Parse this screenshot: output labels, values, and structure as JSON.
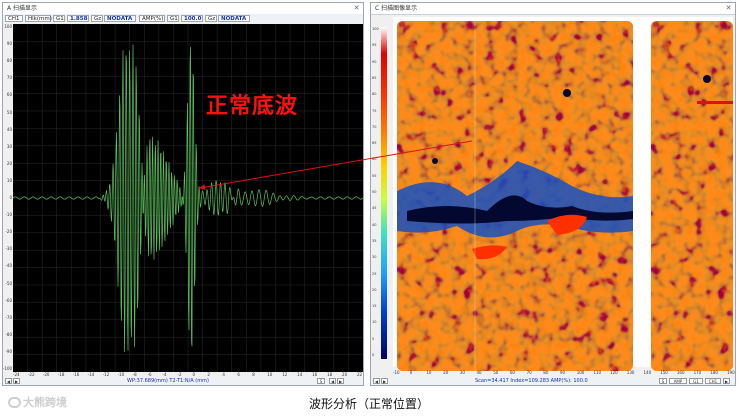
{
  "ascan": {
    "title": "A 扫描显示",
    "toolbar": {
      "ch": "CH1",
      "unit": "Hlk(mm)",
      "g1": "G1",
      "g1_val": "1.858",
      "gz1": "Gz",
      "gz1_val": "NODATA",
      "amp": "AMP(%)",
      "g2": "G1",
      "g2_val": "100.0",
      "gz2": "Gz",
      "gz2_val": "NODATA"
    },
    "ylabels": [
      "100",
      "90",
      "80",
      "70",
      "60",
      "50",
      "40",
      "30",
      "20",
      "10",
      "0",
      "-10",
      "-20",
      "-30",
      "-40",
      "-50",
      "-60",
      "-70",
      "-80",
      "-90",
      "-100"
    ],
    "xlabels": [
      "-24",
      "-22",
      "-20",
      "-18",
      "-16",
      "-14",
      "-12",
      "-10",
      "-8",
      "-6",
      "-4",
      "-2",
      "0",
      "2",
      "4",
      "6",
      "8",
      "10",
      "12",
      "14",
      "16",
      "18",
      "20",
      "22"
    ],
    "status": "WP:37.689(mm)  T2-T1:N/A (mm)",
    "status_s": "S",
    "wave_color": "#5cc05c"
  },
  "cscan": {
    "title": "C 扫描图像显示",
    "colorbar_labels": [
      "100",
      "95",
      "90",
      "85",
      "80",
      "75",
      "70",
      "65",
      "60",
      "55",
      "50",
      "45",
      "40",
      "35",
      "30",
      "25",
      "20",
      "15",
      "10",
      "5",
      "0"
    ],
    "xlabels": [
      "-10",
      "0",
      "10",
      "20",
      "30",
      "40",
      "50",
      "60",
      "70",
      "80",
      "90",
      "100",
      "110",
      "120",
      "130",
      "140",
      "150",
      "160",
      "170",
      "180",
      "190"
    ],
    "status": "Scan=34.417  Index=109.283  AMP(%): 100.0",
    "buttons": [
      "S",
      "AMP",
      "G1",
      "CH1"
    ]
  },
  "annotation": {
    "label": "正常底波",
    "color": "#ff1010"
  },
  "caption": "波形分析（正常位置）",
  "watermark": "大熊跨境"
}
